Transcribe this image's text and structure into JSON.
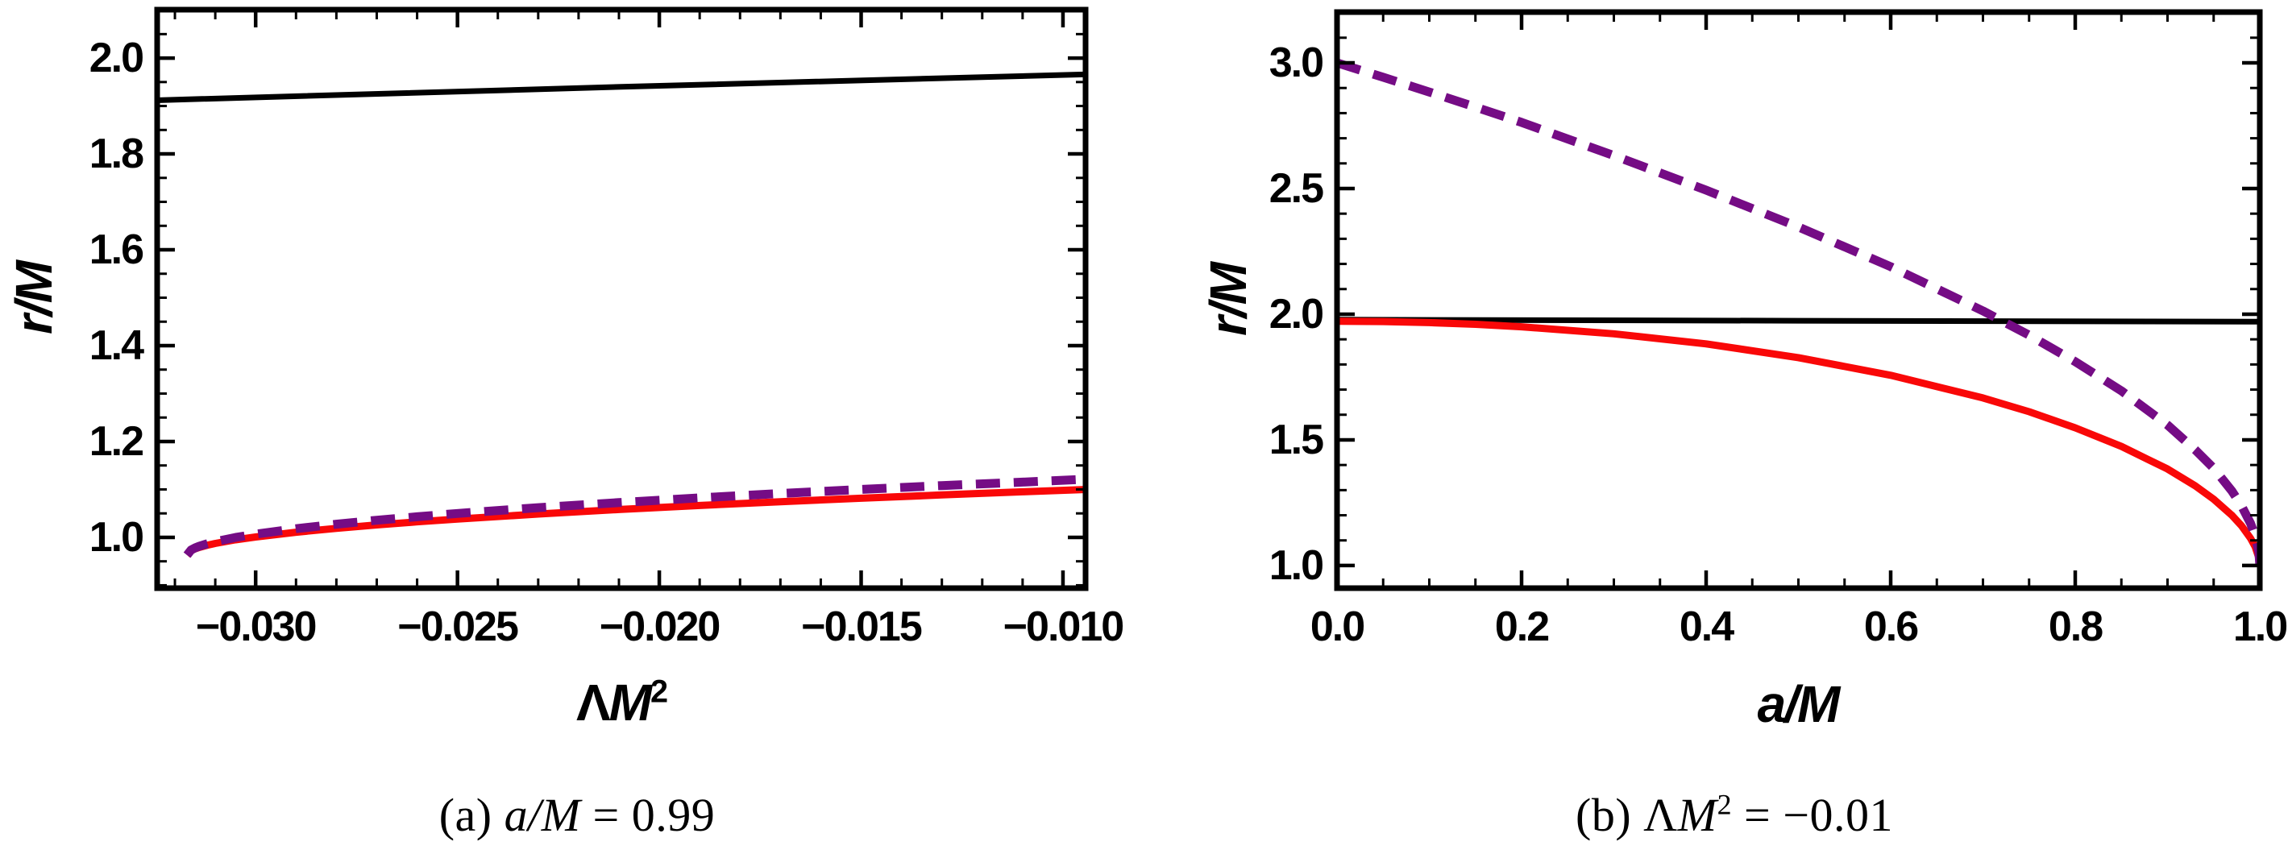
{
  "figure_background": "#ffffff",
  "colors": {
    "frame": "#000000",
    "black_curve": "#000000",
    "red_curve": "#f90808",
    "purple_curve": "#750c85"
  },
  "labels": {
    "left_ylabel": "r/M",
    "right_ylabel": "r/M",
    "left_xlabel": {
      "lambda": "Λ",
      "m": "M",
      "sup": "2"
    },
    "right_xlabel": "a/M",
    "caption_a": {
      "prefix": "(a) ",
      "math": "a/M",
      "suffix": " = 0.99"
    },
    "caption_b": {
      "prefix": "(b) ",
      "lambda": "Λ",
      "m": "M",
      "sup": "2",
      "suffix": " = −0.01"
    }
  },
  "chart_data": [
    {
      "type": "line",
      "title": "",
      "xlabel": "ΛM²",
      "ylabel": "r/M",
      "caption": "(a) a/M = 0.99",
      "xlim": [
        -0.03244,
        -0.00944
      ],
      "ylim": [
        0.894,
        2.101
      ],
      "xticks": [
        -0.03,
        -0.025,
        -0.02,
        -0.015,
        -0.01
      ],
      "xtick_labels": [
        "−0.030",
        "−0.025",
        "−0.020",
        "−0.015",
        "−0.010"
      ],
      "yticks": [
        1.0,
        1.2,
        1.4,
        1.6,
        1.8,
        2.0
      ],
      "ytick_labels": [
        "1.0",
        "1.2",
        "1.4",
        "1.6",
        "1.8",
        "2.0"
      ],
      "minor_x_step": 0.001,
      "minor_y_step": 0.05,
      "grid": false,
      "legend": "none",
      "series": [
        {
          "name": "black-solid-line",
          "color": "#000000",
          "width": 7,
          "dash": null,
          "x": [
            -0.03244,
            -0.02094,
            -0.00944
          ],
          "y": [
            1.912,
            1.94,
            1.966
          ]
        },
        {
          "name": "red-solid-curve",
          "color": "#f90808",
          "width": 9,
          "dash": null,
          "x": [
            -0.0317,
            -0.0316,
            -0.0315,
            -0.0314,
            -0.0312,
            -0.031,
            -0.0305,
            -0.03,
            -0.029,
            -0.028,
            -0.027,
            -0.026,
            -0.025,
            -0.023,
            -0.021,
            -0.019,
            -0.017,
            -0.015,
            -0.013,
            -0.011,
            -0.00944
          ],
          "y": [
            0.963,
            0.9722,
            0.976,
            0.9789,
            0.9835,
            0.9873,
            0.9948,
            1.0008,
            1.0107,
            1.0188,
            1.0259,
            1.0323,
            1.0381,
            1.0486,
            1.058,
            1.0665,
            1.0743,
            1.0816,
            1.0885,
            1.0951,
            1.1
          ]
        },
        {
          "name": "purple-dashed-curve",
          "color": "#750c85",
          "width": 11,
          "dash": [
            30,
            17
          ],
          "x": [
            -0.0317,
            -0.0316,
            -0.0315,
            -0.0314,
            -0.0312,
            -0.031,
            -0.0305,
            -0.03,
            -0.029,
            -0.028,
            -0.027,
            -0.026,
            -0.025,
            -0.023,
            -0.021,
            -0.019,
            -0.017,
            -0.015,
            -0.013,
            -0.011,
            -0.00944
          ],
          "y": [
            0.963,
            0.9736,
            0.978,
            0.9814,
            0.9867,
            0.991,
            0.9997,
            1.0067,
            1.0181,
            1.0275,
            1.0357,
            1.043,
            1.0498,
            1.0619,
            1.0726,
            1.0825,
            1.0915,
            1.1,
            1.108,
            1.1152,
            1.1212
          ]
        }
      ]
    },
    {
      "type": "line",
      "title": "",
      "xlabel": "a/M",
      "ylabel": "r/M",
      "caption": "(b) ΛM² = −0.01",
      "xlim": [
        0.0,
        1.0
      ],
      "ylim": [
        0.91,
        3.202
      ],
      "xticks": [
        0.0,
        0.2,
        0.4,
        0.6,
        0.8,
        1.0
      ],
      "xtick_labels": [
        "0.0",
        "0.2",
        "0.4",
        "0.6",
        "0.8",
        "1.0"
      ],
      "yticks": [
        1.0,
        1.5,
        2.0,
        2.5,
        3.0
      ],
      "ytick_labels": [
        "1.0",
        "1.5",
        "2.0",
        "2.5",
        "3.0"
      ],
      "minor_x_step": 0.05,
      "minor_y_step": 0.1,
      "grid": false,
      "legend": "none",
      "series": [
        {
          "name": "black-solid-line",
          "color": "#000000",
          "width": 7,
          "dash": null,
          "x": [
            0.0,
            0.5,
            1.0
          ],
          "y": [
            1.978,
            1.974,
            1.97
          ]
        },
        {
          "name": "red-solid-curve",
          "color": "#f90808",
          "width": 9,
          "dash": null,
          "x": [
            0.0,
            0.05,
            0.1,
            0.15,
            0.2,
            0.3,
            0.4,
            0.5,
            0.6,
            0.7,
            0.75,
            0.8,
            0.85,
            0.9,
            0.93,
            0.95,
            0.97,
            0.98,
            0.99,
            0.995,
            0.999,
            1.0
          ],
          "y": [
            1.972,
            1.9706,
            1.9666,
            1.9597,
            1.95,
            1.922,
            1.882,
            1.827,
            1.757,
            1.667,
            1.612,
            1.548,
            1.474,
            1.384,
            1.317,
            1.264,
            1.199,
            1.159,
            1.108,
            1.074,
            1.03,
            1.0
          ]
        },
        {
          "name": "purple-dashed-curve",
          "color": "#750c85",
          "width": 11,
          "dash": [
            30,
            17
          ],
          "x": [
            0.0,
            0.05,
            0.1,
            0.15,
            0.2,
            0.3,
            0.4,
            0.5,
            0.6,
            0.7,
            0.75,
            0.8,
            0.85,
            0.9,
            0.93,
            0.95,
            0.97,
            0.98,
            0.99,
            0.995,
            0.999,
            1.0
          ],
          "y": [
            3.0,
            2.9426,
            2.884,
            2.824,
            2.763,
            2.631,
            2.4936,
            2.347,
            2.189,
            2.013,
            1.9164,
            1.811,
            1.695,
            1.559,
            1.46,
            1.387,
            1.2956,
            1.239,
            1.1675,
            1.1172,
            1.0529,
            1.0
          ]
        }
      ]
    }
  ]
}
